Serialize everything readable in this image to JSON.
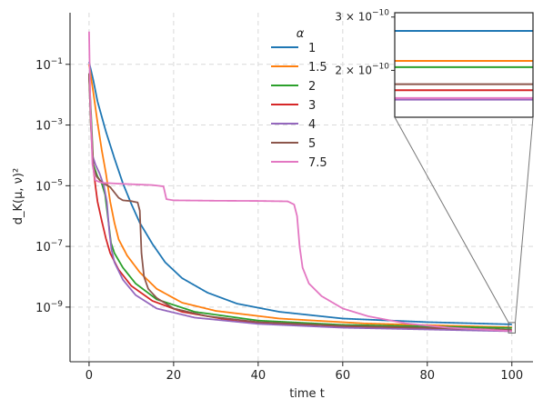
{
  "chart_data": {
    "type": "line",
    "xlabel": "time t",
    "ylabel": "d_K(μ, ν)²",
    "yscale": "log",
    "xlim": [
      -4.5,
      105
    ],
    "ylim_log10": [
      -10.8,
      0.7
    ],
    "grid": true,
    "x_ticks": [
      0,
      20,
      40,
      60,
      80,
      100
    ],
    "y_ticks": [
      {
        "exp": -1,
        "label": "10",
        "sup": "−1"
      },
      {
        "exp": -3,
        "label": "10",
        "sup": "−3"
      },
      {
        "exp": -5,
        "label": "10",
        "sup": "−5"
      },
      {
        "exp": -7,
        "label": "10",
        "sup": "−7"
      },
      {
        "exp": -9,
        "label": "10",
        "sup": "−9"
      }
    ],
    "legend": {
      "title": "α",
      "position": "upper center"
    },
    "series": [
      {
        "name": "1",
        "color": "#1f77b4",
        "final_value": 2.7e-10
      },
      {
        "name": "1.5",
        "color": "#ff7f0e",
        "final_value": 2.15e-10
      },
      {
        "name": "2",
        "color": "#2ca02c",
        "final_value": 2.05e-10
      },
      {
        "name": "3",
        "color": "#d62728",
        "final_value": 1.72e-10
      },
      {
        "name": "4",
        "color": "#9467bd",
        "final_value": 1.6e-10
      },
      {
        "name": "5",
        "color": "#8c564b",
        "final_value": 1.8e-10
      },
      {
        "name": "7.5",
        "color": "#e377c2",
        "final_value": 1.62e-10
      }
    ],
    "inset": {
      "x_range": [
        99.2,
        100.8
      ],
      "y_ticks": [
        {
          "value": 3e-10,
          "label": "3 × 10",
          "sup": "−10"
        },
        {
          "value": 2e-10,
          "label": "2 × 10",
          "sup": "−10"
        }
      ]
    }
  }
}
